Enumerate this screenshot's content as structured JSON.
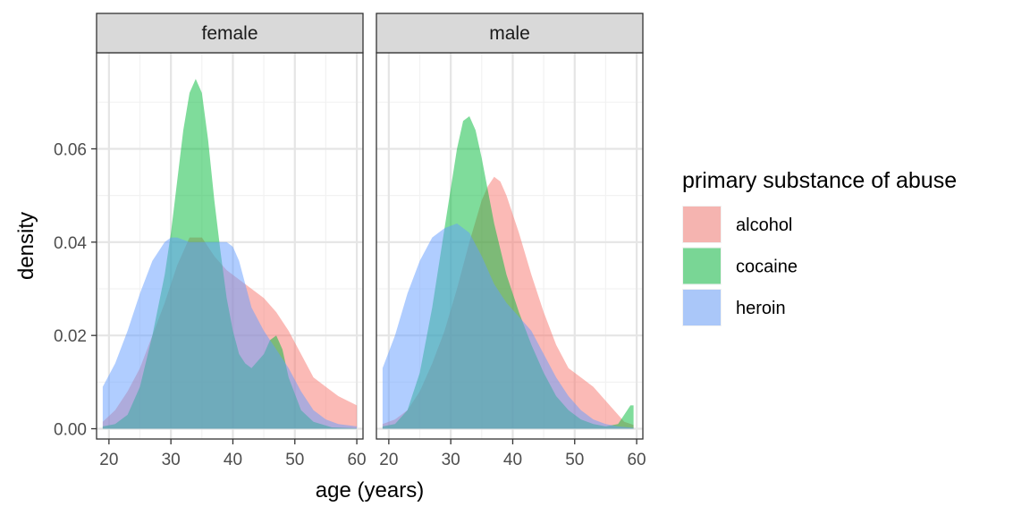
{
  "chart_data": {
    "type": "area",
    "subtype": "density, faceted",
    "xlabel": "age (years)",
    "ylabel": "density",
    "xlim": [
      18,
      61
    ],
    "ylim": [
      -0.0022,
      0.0806
    ],
    "x_ticks": [
      20,
      30,
      40,
      50,
      60
    ],
    "x_tick_labels": [
      "20",
      "30",
      "40",
      "50",
      "60"
    ],
    "y_ticks": [
      0,
      0.02,
      0.04,
      0.06
    ],
    "y_tick_labels": [
      "0.00",
      "0.02",
      "0.04",
      "0.06"
    ],
    "grid": true,
    "legend": {
      "title": "primary substance of abuse",
      "position": "right",
      "entries": [
        "alcohol",
        "cocaine",
        "heroin"
      ]
    },
    "fill_opacity": 0.5,
    "colors": {
      "alcohol": "#F8766D",
      "cocaine": "#00BA38",
      "heroin": "#619CFF"
    },
    "facets": [
      {
        "label": "female",
        "series": [
          {
            "name": "alcohol",
            "x": [
              19,
              21,
              23,
              25,
              27,
              29,
              31,
              33,
              35,
              37,
              39,
              41,
              43,
              45,
              47,
              49,
              51,
              53,
              55,
              57,
              60
            ],
            "y": [
              0.0015,
              0.004,
              0.008,
              0.013,
              0.02,
              0.027,
              0.035,
              0.041,
              0.041,
              0.037,
              0.034,
              0.032,
              0.03,
              0.028,
              0.025,
              0.021,
              0.016,
              0.011,
              0.009,
              0.007,
              0.005
            ]
          },
          {
            "name": "cocaine",
            "x": [
              19,
              21,
              23,
              25,
              27,
              29,
              30,
              31,
              32,
              33,
              34,
              35,
              36,
              37,
              38,
              39,
              40,
              41,
              42,
              43,
              45,
              46,
              47,
              48,
              49,
              51,
              53,
              56,
              60
            ],
            "y": [
              0.0005,
              0.001,
              0.003,
              0.009,
              0.02,
              0.033,
              0.042,
              0.053,
              0.064,
              0.072,
              0.075,
              0.072,
              0.062,
              0.049,
              0.038,
              0.028,
              0.021,
              0.016,
              0.014,
              0.013,
              0.016,
              0.019,
              0.02,
              0.017,
              0.011,
              0.004,
              0.0015,
              0.0003,
              0.0001
            ]
          },
          {
            "name": "heroin",
            "x": [
              19,
              21,
              23,
              25,
              27,
              29,
              30,
              31,
              33,
              35,
              37,
              39,
              40,
              41,
              42,
              43,
              45,
              47,
              49,
              51,
              53,
              55,
              57,
              60
            ],
            "y": [
              0.009,
              0.014,
              0.021,
              0.029,
              0.036,
              0.04,
              0.041,
              0.041,
              0.04,
              0.04,
              0.04,
              0.04,
              0.039,
              0.036,
              0.031,
              0.026,
              0.021,
              0.017,
              0.013,
              0.008,
              0.004,
              0.002,
              0.001,
              0.0005
            ]
          }
        ]
      },
      {
        "label": "male",
        "series": [
          {
            "name": "alcohol",
            "x": [
              19,
              21,
              23,
              25,
              27,
              29,
              31,
              33,
              35,
              36,
              37,
              38,
              39,
              41,
              43,
              45,
              47,
              49,
              51,
              53,
              55,
              57,
              58,
              59.5
            ],
            "y": [
              0.001,
              0.002,
              0.004,
              0.008,
              0.014,
              0.021,
              0.03,
              0.04,
              0.049,
              0.052,
              0.054,
              0.053,
              0.05,
              0.042,
              0.033,
              0.025,
              0.018,
              0.013,
              0.011,
              0.009,
              0.006,
              0.003,
              0.0015,
              0.0008
            ]
          },
          {
            "name": "cocaine",
            "x": [
              19,
              21,
              23,
              25,
              27,
              29,
              31,
              32,
              33,
              34,
              35,
              37,
              39,
              41,
              43,
              45,
              47,
              49,
              51,
              53,
              55,
              57,
              58,
              59,
              59.5
            ],
            "y": [
              0.0005,
              0.001,
              0.004,
              0.012,
              0.026,
              0.043,
              0.06,
              0.066,
              0.067,
              0.064,
              0.058,
              0.044,
              0.033,
              0.025,
              0.018,
              0.012,
              0.007,
              0.004,
              0.002,
              0.001,
              0.0005,
              0.001,
              0.003,
              0.005,
              0.005
            ]
          },
          {
            "name": "heroin",
            "x": [
              19,
              21,
              23,
              25,
              27,
              29,
              31,
              33,
              35,
              37,
              39,
              41,
              43,
              45,
              47,
              49,
              51,
              53,
              55,
              57,
              59.5
            ],
            "y": [
              0.013,
              0.02,
              0.029,
              0.036,
              0.041,
              0.043,
              0.044,
              0.042,
              0.037,
              0.031,
              0.027,
              0.024,
              0.021,
              0.016,
              0.011,
              0.007,
              0.004,
              0.002,
              0.001,
              0.0005,
              0.0002
            ]
          }
        ]
      }
    ]
  }
}
